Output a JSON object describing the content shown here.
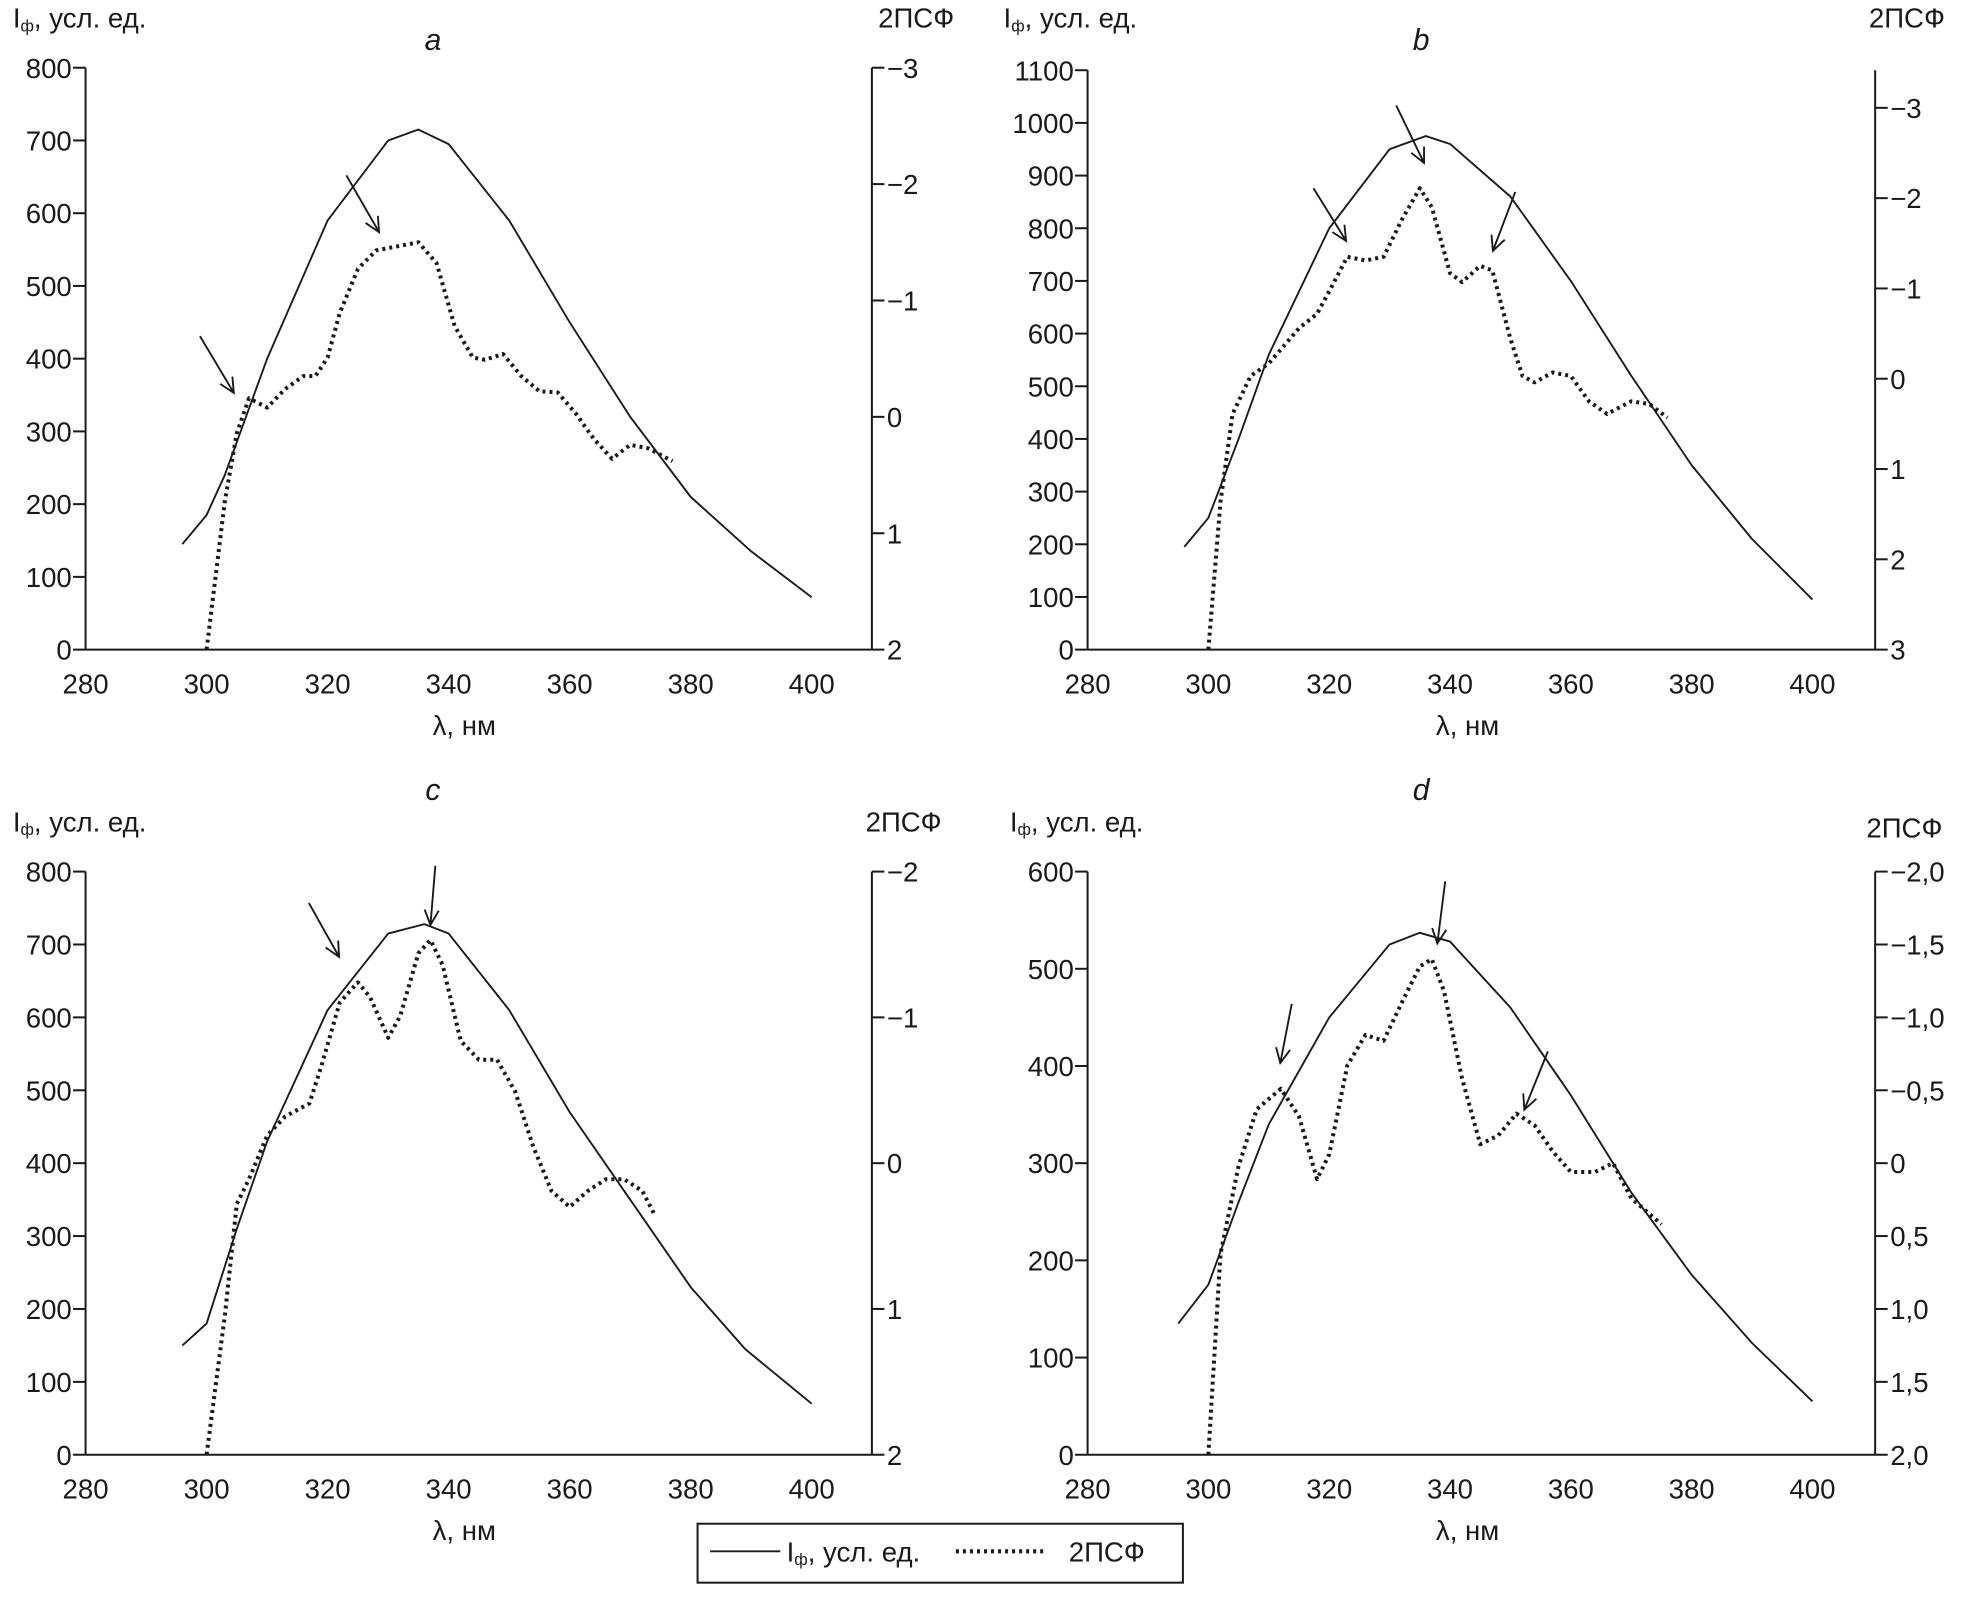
{
  "legend": {
    "solid_label_main": "I",
    "solid_label_sub": "ф",
    "solid_label_rest": ", усл. ед.",
    "dotted_label": "2ПСФ"
  },
  "chart_data": [
    {
      "type": "line",
      "panel": "a",
      "xlabel": "λ, нм",
      "ylabel_main": "I",
      "ylabel_sub": "ф",
      "ylabel_rest": ", усл. ед.",
      "y2label": "2ПСФ",
      "xlim": [
        280,
        410
      ],
      "xticks": [
        "280",
        "300",
        "320",
        "340",
        "360",
        "380",
        "400"
      ],
      "ylim": [
        0,
        800
      ],
      "yticks": [
        "0",
        "100",
        "200",
        "300",
        "400",
        "500",
        "600",
        "700",
        "800"
      ],
      "y2lim": [
        2,
        -3
      ],
      "y2ticks": [
        {
          "v": 2,
          "label": "2"
        },
        {
          "v": 1,
          "label": "1"
        },
        {
          "v": 0,
          "label": "0"
        },
        {
          "v": -1,
          "label": "−1"
        },
        {
          "v": -2,
          "label": "−2"
        },
        {
          "v": -3,
          "label": "−3"
        }
      ],
      "series": [
        {
          "name": "Iф, усл. ед.",
          "axis": "left",
          "style": "solid",
          "points": [
            [
              296,
              145
            ],
            [
              300,
              185
            ],
            [
              303,
              240
            ],
            [
              310,
              400
            ],
            [
              320,
              590
            ],
            [
              330,
              700
            ],
            [
              335,
              715
            ],
            [
              340,
              695
            ],
            [
              350,
              590
            ],
            [
              360,
              450
            ],
            [
              370,
              320
            ],
            [
              380,
              210
            ],
            [
              390,
              135
            ],
            [
              400,
              72
            ]
          ]
        },
        {
          "name": "2ПСФ",
          "axis": "right",
          "style": "dotted",
          "points": [
            [
              300,
              2
            ],
            [
              303,
              0.73
            ],
            [
              305,
              0.14
            ],
            [
              307,
              -0.16
            ],
            [
              310,
              -0.08
            ],
            [
              313,
              -0.24
            ],
            [
              316,
              -0.35
            ],
            [
              318,
              -0.35
            ],
            [
              320,
              -0.51
            ],
            [
              322,
              -0.89
            ],
            [
              325,
              -1.27
            ],
            [
              328,
              -1.43
            ],
            [
              332,
              -1.47
            ],
            [
              335,
              -1.5
            ],
            [
              338,
              -1.32
            ],
            [
              341,
              -0.78
            ],
            [
              344,
              -0.51
            ],
            [
              346,
              -0.49
            ],
            [
              349,
              -0.54
            ],
            [
              352,
              -0.35
            ],
            [
              355,
              -0.22
            ],
            [
              358,
              -0.21
            ],
            [
              361,
              -0.03
            ],
            [
              364,
              0.19
            ],
            [
              367,
              0.36
            ],
            [
              370,
              0.24
            ],
            [
              373,
              0.27
            ],
            [
              377,
              0.38
            ]
          ]
        }
      ],
      "arrows": [
        [
          [
            298.9,
            431
          ],
          [
            304.5,
            353
          ]
        ],
        [
          [
            323.1,
            652
          ],
          [
            328.5,
            574
          ]
        ]
      ]
    },
    {
      "type": "line",
      "panel": "b",
      "xlabel": "λ, нм",
      "ylabel_main": "I",
      "ylabel_sub": "ф",
      "ylabel_rest": ", усл. ед.",
      "y2label": "2ПСФ",
      "xlim": [
        280,
        410
      ],
      "xticks": [
        "280",
        "300",
        "320",
        "340",
        "360",
        "380",
        "400"
      ],
      "ylim": [
        0,
        1100
      ],
      "yticks": [
        "0",
        "100",
        "200",
        "300",
        "400",
        "500",
        "600",
        "700",
        "800",
        "900",
        "1000",
        "1100"
      ],
      "y2lim": [
        3,
        -3.42
      ],
      "y2ticks": [
        {
          "v": 3,
          "label": "3"
        },
        {
          "v": 2,
          "label": "2"
        },
        {
          "v": 1,
          "label": "1"
        },
        {
          "v": 0,
          "label": "0"
        },
        {
          "v": -1,
          "label": "−1"
        },
        {
          "v": -2,
          "label": "−2"
        },
        {
          "v": -3,
          "label": "−3"
        }
      ],
      "series": [
        {
          "name": "Iф, усл. ед.",
          "axis": "left",
          "style": "solid",
          "points": [
            [
              296,
              195
            ],
            [
              300,
              250
            ],
            [
              305,
              400
            ],
            [
              310,
              560
            ],
            [
              320,
              800
            ],
            [
              330,
              950
            ],
            [
              336,
              975
            ],
            [
              340,
              960
            ],
            [
              350,
              860
            ],
            [
              360,
              700
            ],
            [
              370,
              520
            ],
            [
              380,
              350
            ],
            [
              390,
              210
            ],
            [
              400,
              95
            ]
          ]
        },
        {
          "name": "2ПСФ",
          "axis": "right",
          "style": "dotted",
          "points": [
            [
              300,
              3
            ],
            [
              302,
              1.36
            ],
            [
              304,
              0.39
            ],
            [
              307,
              -0.03
            ],
            [
              310,
              -0.17
            ],
            [
              315,
              -0.56
            ],
            [
              318,
              -0.72
            ],
            [
              320,
              -0.97
            ],
            [
              323,
              -1.35
            ],
            [
              326,
              -1.31
            ],
            [
              329,
              -1.35
            ],
            [
              332,
              -1.76
            ],
            [
              335,
              -2.11
            ],
            [
              337,
              -1.9
            ],
            [
              340,
              -1.17
            ],
            [
              342,
              -1.07
            ],
            [
              345,
              -1.25
            ],
            [
              347,
              -1.2
            ],
            [
              350,
              -0.44
            ],
            [
              352,
              -0.03
            ],
            [
              354,
              0.04
            ],
            [
              357,
              -0.07
            ],
            [
              360,
              -0.03
            ],
            [
              363,
              0.25
            ],
            [
              366,
              0.39
            ],
            [
              370,
              0.25
            ],
            [
              373,
              0.28
            ],
            [
              376,
              0.43
            ]
          ]
        }
      ],
      "arrows": [
        [
          [
            317.4,
            876
          ],
          [
            322.8,
            776
          ]
        ],
        [
          [
            331.1,
            1033
          ],
          [
            335.7,
            924
          ]
        ],
        [
          [
            350.8,
            869
          ],
          [
            347.1,
            757
          ]
        ]
      ]
    },
    {
      "type": "line",
      "panel": "c",
      "xlabel": "λ, нм",
      "ylabel_main": "I",
      "ylabel_sub": "ф",
      "ylabel_rest": ", усл. ед.",
      "y2label": "2ПСФ",
      "xlim": [
        280,
        410
      ],
      "xticks": [
        "280",
        "300",
        "320",
        "340",
        "360",
        "380",
        "400"
      ],
      "ylim": [
        0,
        800
      ],
      "yticks": [
        "0",
        "100",
        "200",
        "300",
        "400",
        "500",
        "600",
        "700",
        "800"
      ],
      "y2lim": [
        2,
        -2
      ],
      "y2ticks": [
        {
          "v": 2,
          "label": "2"
        },
        {
          "v": 1,
          "label": "1"
        },
        {
          "v": 0,
          "label": "0"
        },
        {
          "v": -1,
          "label": "−1"
        },
        {
          "v": -2,
          "label": "−2"
        }
      ],
      "series": [
        {
          "name": "Iф, усл. ед.",
          "axis": "left",
          "style": "solid",
          "points": [
            [
              296,
              150
            ],
            [
              300,
              180
            ],
            [
              305,
              310
            ],
            [
              310,
              430
            ],
            [
              320,
              610
            ],
            [
              330,
              715
            ],
            [
              336,
              728
            ],
            [
              340,
              715
            ],
            [
              350,
              610
            ],
            [
              360,
              470
            ],
            [
              370,
              350
            ],
            [
              380,
              230
            ],
            [
              389,
              145
            ],
            [
              400,
              70
            ]
          ]
        },
        {
          "name": "2ПСФ",
          "axis": "right",
          "style": "dotted",
          "points": [
            [
              300,
              2
            ],
            [
              303,
              1.05
            ],
            [
              305,
              0.28
            ],
            [
              307,
              0.11
            ],
            [
              310,
              -0.19
            ],
            [
              313,
              -0.32
            ],
            [
              317,
              -0.41
            ],
            [
              319,
              -0.67
            ],
            [
              322,
              -1.1
            ],
            [
              325,
              -1.24
            ],
            [
              327,
              -1.14
            ],
            [
              330,
              -0.86
            ],
            [
              332,
              -1.01
            ],
            [
              335,
              -1.44
            ],
            [
              337,
              -1.53
            ],
            [
              339,
              -1.36
            ],
            [
              342,
              -0.84
            ],
            [
              345,
              -0.71
            ],
            [
              348,
              -0.71
            ],
            [
              351,
              -0.49
            ],
            [
              354,
              -0.11
            ],
            [
              357,
              0.19
            ],
            [
              360,
              0.3
            ],
            [
              363,
              0.19
            ],
            [
              366,
              0.11
            ],
            [
              369,
              0.11
            ],
            [
              372,
              0.19
            ],
            [
              374,
              0.35
            ]
          ]
        }
      ],
      "arrows": [
        [
          [
            316.9,
            757
          ],
          [
            321.9,
            683
          ]
        ],
        [
          [
            337.8,
            808
          ],
          [
            337.0,
            727
          ]
        ]
      ]
    },
    {
      "type": "line",
      "panel": "d",
      "xlabel": "λ, нм",
      "ylabel_main": "I",
      "ylabel_sub": "ф",
      "ylabel_rest": ", усл. ед.",
      "y2label": "2ПСФ",
      "xlim": [
        280,
        410
      ],
      "xticks": [
        "280",
        "300",
        "320",
        "340",
        "360",
        "380",
        "400"
      ],
      "ylim": [
        0,
        600
      ],
      "yticks": [
        "0",
        "100",
        "200",
        "300",
        "400",
        "500",
        "600"
      ],
      "y2lim": [
        2,
        -2
      ],
      "y2ticks": [
        {
          "v": 2,
          "label": "2,0"
        },
        {
          "v": 1.5,
          "label": "1,5"
        },
        {
          "v": 1,
          "label": "1,0"
        },
        {
          "v": 0.5,
          "label": "0,5"
        },
        {
          "v": 0,
          "label": "0"
        },
        {
          "v": -0.5,
          "label": "−0,5"
        },
        {
          "v": -1,
          "label": "−1,0"
        },
        {
          "v": -1.5,
          "label": "−1,5"
        },
        {
          "v": -2,
          "label": "−2,0"
        }
      ],
      "series": [
        {
          "name": "Iф, усл. ед.",
          "axis": "left",
          "style": "solid",
          "points": [
            [
              295,
              135
            ],
            [
              300,
              175
            ],
            [
              305,
              260
            ],
            [
              310,
              340
            ],
            [
              320,
              450
            ],
            [
              330,
              525
            ],
            [
              335,
              537
            ],
            [
              340,
              528
            ],
            [
              350,
              460
            ],
            [
              360,
              370
            ],
            [
              370,
              270
            ],
            [
              380,
              185
            ],
            [
              390,
              115
            ],
            [
              400,
              55
            ]
          ]
        },
        {
          "name": "2ПСФ",
          "axis": "right",
          "style": "dotted",
          "points": [
            [
              300,
              2
            ],
            [
              302,
              0.62
            ],
            [
              305,
              0.02
            ],
            [
              308,
              -0.37
            ],
            [
              312,
              -0.51
            ],
            [
              315,
              -0.32
            ],
            [
              318,
              0.11
            ],
            [
              320,
              -0.06
            ],
            [
              323,
              -0.67
            ],
            [
              326,
              -0.88
            ],
            [
              329,
              -0.84
            ],
            [
              332,
              -1.1
            ],
            [
              335,
              -1.35
            ],
            [
              337,
              -1.4
            ],
            [
              339,
              -1.18
            ],
            [
              342,
              -0.58
            ],
            [
              345,
              -0.13
            ],
            [
              348,
              -0.19
            ],
            [
              351,
              -0.34
            ],
            [
              354,
              -0.26
            ],
            [
              357,
              -0.08
            ],
            [
              360,
              0.06
            ],
            [
              364,
              0.06
            ],
            [
              367,
              0.0
            ],
            [
              370,
              0.24
            ],
            [
              375,
              0.42
            ]
          ]
        }
      ],
      "arrows": [
        [
          [
            313.8,
            464
          ],
          [
            311.9,
            403
          ]
        ],
        [
          [
            339.2,
            590
          ],
          [
            337.9,
            526
          ]
        ],
        [
          [
            356.2,
            415
          ],
          [
            352.3,
            355
          ]
        ]
      ]
    }
  ]
}
